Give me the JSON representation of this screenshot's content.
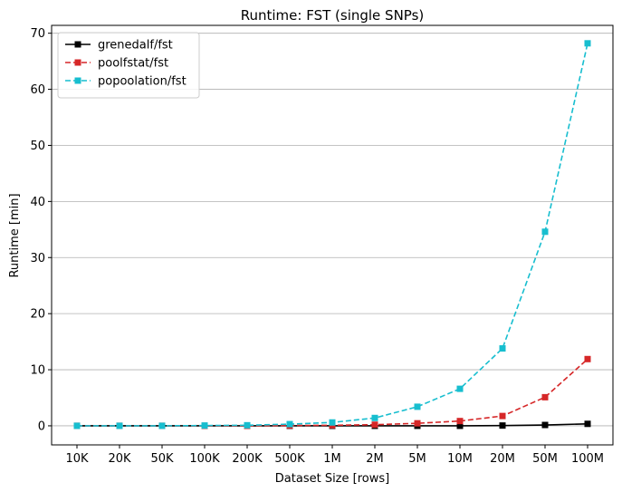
{
  "chart_data": {
    "type": "line",
    "title": "Runtime:  FST (single SNPs)",
    "xlabel": "Dataset Size  [rows]",
    "ylabel": "Runtime  [min]",
    "categories": [
      "10K",
      "20K",
      "50K",
      "100K",
      "200K",
      "500K",
      "1M",
      "2M",
      "5M",
      "10M",
      "20M",
      "50M",
      "100M"
    ],
    "ylim": [
      -3.4,
      71.4
    ],
    "yticks": [
      0,
      10,
      20,
      30,
      40,
      50,
      60,
      70
    ],
    "grid": "horizontal",
    "legend_position": "top-left",
    "series": [
      {
        "name": "grenedalf/fst",
        "color": "#000000",
        "dashed": false,
        "values": [
          0,
          0,
          0,
          0,
          0,
          0,
          0,
          0,
          0,
          0,
          0.05,
          0.15,
          0.35
        ]
      },
      {
        "name": "poolfstat/fst",
        "color": "#d62728",
        "dashed": true,
        "values": [
          0,
          0,
          0,
          0,
          0,
          0.05,
          0.1,
          0.2,
          0.45,
          0.85,
          1.75,
          5.1,
          11.9
        ]
      },
      {
        "name": "popoolation/fst",
        "color": "#17becf",
        "dashed": true,
        "values": [
          0,
          0,
          0,
          0.05,
          0.1,
          0.3,
          0.6,
          1.4,
          3.4,
          6.6,
          13.8,
          34.6,
          68.2
        ]
      }
    ]
  }
}
